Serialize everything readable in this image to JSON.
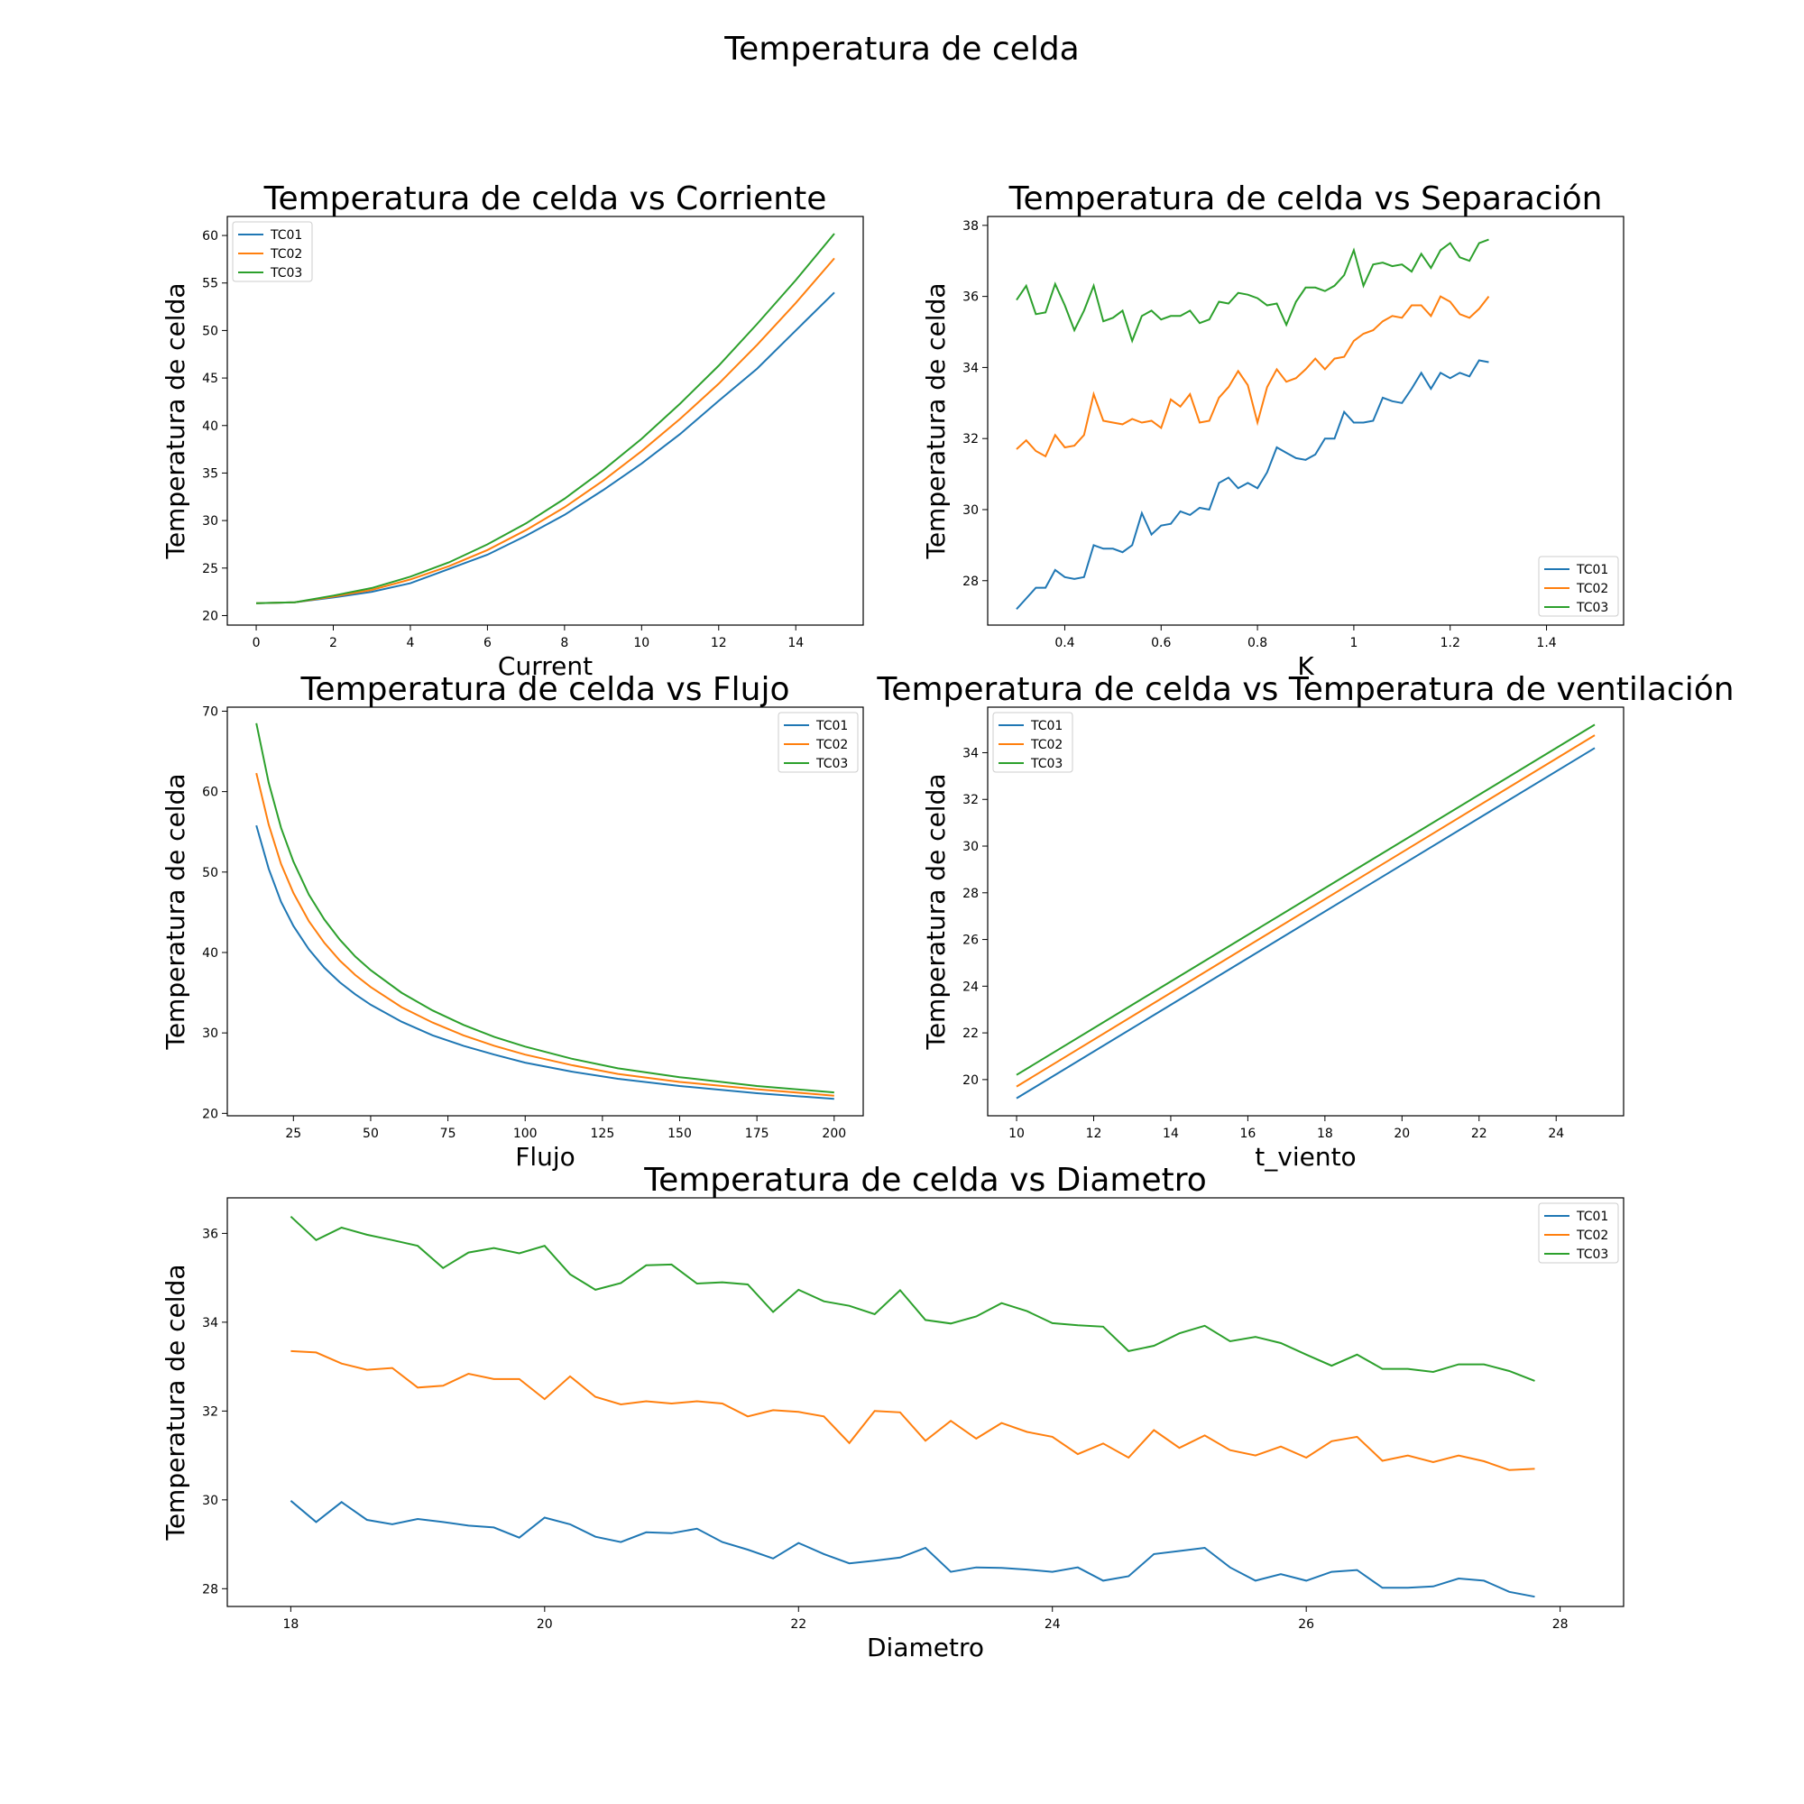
{
  "figure": {
    "suptitle": "Temperatura de celda"
  },
  "colors": {
    "TC01": "#1f77b4",
    "TC02": "#ff7f0e",
    "TC03": "#2ca02c"
  },
  "chart_data": [
    {
      "type": "line",
      "title": "Temperatura de celda vs Corriente",
      "xlabel": "Current",
      "ylabel": "Temperatura de celda",
      "xlim": [
        -0.75,
        15.75
      ],
      "ylim": [
        19.0,
        62.0
      ],
      "xticks": [
        0,
        2,
        4,
        6,
        8,
        10,
        12,
        14
      ],
      "yticks": [
        20,
        25,
        30,
        35,
        40,
        45,
        50,
        55,
        60
      ],
      "legend": "upper-left",
      "x": [
        0,
        1,
        2,
        3,
        4,
        5,
        6,
        7,
        8,
        9,
        10,
        11,
        12,
        13,
        14,
        15
      ],
      "series": [
        {
          "name": "TC01",
          "values": [
            21.3,
            21.4,
            21.9,
            22.5,
            23.4,
            24.9,
            26.4,
            28.4,
            30.6,
            33.2,
            36.0,
            39.1,
            42.6,
            46.0,
            50.0,
            54.0
          ]
        },
        {
          "name": "TC02",
          "values": [
            21.3,
            21.4,
            22.0,
            22.7,
            23.8,
            25.2,
            26.9,
            29.0,
            31.4,
            34.2,
            37.3,
            40.7,
            44.4,
            48.5,
            52.9,
            57.6
          ]
        },
        {
          "name": "TC03",
          "values": [
            21.3,
            21.4,
            22.1,
            22.9,
            24.1,
            25.6,
            27.5,
            29.7,
            32.3,
            35.3,
            38.6,
            42.3,
            46.3,
            50.7,
            55.3,
            60.2
          ]
        }
      ]
    },
    {
      "type": "line",
      "title": "Temperatura de celda vs Separación",
      "xlabel": "K",
      "ylabel": "Temperatura de celda",
      "xlim": [
        0.24,
        1.56
      ],
      "ylim": [
        26.75,
        38.25
      ],
      "xticks": [
        0.4,
        0.6,
        0.8,
        1.0,
        1.2,
        1.4
      ],
      "yticks": [
        28,
        30,
        32,
        34,
        36,
        38
      ],
      "legend": "lower-right",
      "x_start": 0.3,
      "x_step": 0.02,
      "series": [
        {
          "name": "TC01",
          "values": [
            27.2,
            27.5,
            27.8,
            27.8,
            28.3,
            28.1,
            28.05,
            28.1,
            29.0,
            28.9,
            28.9,
            28.8,
            29.0,
            29.9,
            29.3,
            29.55,
            29.6,
            29.95,
            29.85,
            30.05,
            30.0,
            30.75,
            30.9,
            30.6,
            30.75,
            30.6,
            31.05,
            31.75,
            31.6,
            31.45,
            31.4,
            31.55,
            32.0,
            32.0,
            32.75,
            32.45,
            32.45,
            32.5,
            33.15,
            33.05,
            33.0,
            33.4,
            33.85,
            33.4,
            33.85,
            33.7,
            33.85,
            33.75,
            34.2,
            34.15
          ]
        },
        {
          "name": "TC02",
          "values": [
            31.7,
            31.95,
            31.65,
            31.5,
            32.1,
            31.75,
            31.8,
            32.1,
            33.25,
            32.5,
            32.45,
            32.4,
            32.55,
            32.45,
            32.5,
            32.3,
            33.1,
            32.9,
            33.25,
            32.45,
            32.5,
            33.15,
            33.45,
            33.9,
            33.5,
            32.45,
            33.45,
            33.95,
            33.6,
            33.7,
            33.95,
            34.25,
            33.95,
            34.25,
            34.3,
            34.75,
            34.95,
            35.05,
            35.3,
            35.45,
            35.4,
            35.75,
            35.75,
            35.45,
            36.0,
            35.85,
            35.5,
            35.4,
            35.65,
            36.0
          ]
        },
        {
          "name": "TC03",
          "values": [
            35.9,
            36.3,
            35.5,
            35.55,
            36.35,
            35.75,
            35.05,
            35.6,
            36.3,
            35.3,
            35.4,
            35.6,
            34.75,
            35.45,
            35.6,
            35.35,
            35.45,
            35.45,
            35.6,
            35.25,
            35.35,
            35.85,
            35.8,
            36.1,
            36.05,
            35.95,
            35.75,
            35.8,
            35.2,
            35.85,
            36.25,
            36.25,
            36.15,
            36.3,
            36.6,
            37.3,
            36.3,
            36.9,
            36.95,
            36.85,
            36.9,
            36.7,
            37.2,
            36.8,
            37.3,
            37.5,
            37.1,
            37.0,
            37.5,
            37.6
          ]
        }
      ]
    },
    {
      "type": "line",
      "title": "Temperatura de celda vs Flujo",
      "xlabel": "Flujo",
      "ylabel": "Temperatura de celda",
      "xlim": [
        3.6,
        209.4
      ],
      "ylim": [
        19.7,
        70.5
      ],
      "xticks": [
        25,
        50,
        75,
        100,
        125,
        150,
        175,
        200
      ],
      "yticks": [
        20,
        30,
        40,
        50,
        60,
        70
      ],
      "legend": "upper-right",
      "x": [
        13,
        17,
        21,
        25,
        30,
        35,
        40,
        45,
        50,
        60,
        70,
        80,
        90,
        100,
        115,
        130,
        150,
        175,
        200
      ],
      "series": [
        {
          "name": "TC01",
          "values": [
            55.8,
            50.4,
            46.3,
            43.3,
            40.4,
            38.1,
            36.3,
            34.8,
            33.5,
            31.4,
            29.7,
            28.4,
            27.3,
            26.3,
            25.2,
            24.3,
            23.4,
            22.5,
            21.8
          ]
        },
        {
          "name": "TC02",
          "values": [
            62.3,
            55.9,
            51.0,
            47.4,
            43.9,
            41.2,
            39.0,
            37.2,
            35.7,
            33.2,
            31.3,
            29.7,
            28.4,
            27.3,
            26.0,
            24.9,
            23.9,
            23.0,
            22.2
          ]
        },
        {
          "name": "TC03",
          "values": [
            68.5,
            61.1,
            55.5,
            51.3,
            47.2,
            44.1,
            41.6,
            39.5,
            37.8,
            35.0,
            32.8,
            31.0,
            29.5,
            28.3,
            26.8,
            25.6,
            24.5,
            23.4,
            22.6
          ]
        }
      ]
    },
    {
      "type": "line",
      "title": "Temperatura de celda vs Temperatura de ventilación",
      "xlabel": "t_viento",
      "ylabel": "Temperatura de celda",
      "xlim": [
        9.25,
        25.75
      ],
      "ylim": [
        18.45,
        35.95
      ],
      "xticks": [
        10,
        12,
        14,
        16,
        18,
        20,
        22,
        24
      ],
      "yticks": [
        20,
        22,
        24,
        26,
        28,
        30,
        32,
        34
      ],
      "legend": "upper-left",
      "x": [
        10,
        25
      ],
      "series": [
        {
          "name": "TC01",
          "values": [
            19.2,
            34.2
          ]
        },
        {
          "name": "TC02",
          "values": [
            19.7,
            34.75
          ]
        },
        {
          "name": "TC03",
          "values": [
            20.2,
            35.2
          ]
        }
      ]
    },
    {
      "type": "line",
      "title": "Temperatura de celda vs Diametro",
      "xlabel": "Diametro",
      "ylabel": "Temperatura de celda",
      "xlim": [
        17.5,
        28.5
      ],
      "ylim": [
        27.6,
        36.8
      ],
      "xticks": [
        18,
        20,
        22,
        24,
        26,
        28
      ],
      "yticks": [
        28,
        30,
        32,
        34,
        36
      ],
      "legend": "upper-right",
      "x_start": 18,
      "x_step": 0.2,
      "series": [
        {
          "name": "TC01",
          "values": [
            29.98,
            29.5,
            29.95,
            29.55,
            29.45,
            29.57,
            29.5,
            29.42,
            29.38,
            29.15,
            29.6,
            29.45,
            29.17,
            29.05,
            29.27,
            29.25,
            29.35,
            29.05,
            28.88,
            28.68,
            29.03,
            28.78,
            28.57,
            28.63,
            28.7,
            28.92,
            28.38,
            28.48,
            28.47,
            28.43,
            28.38,
            28.48,
            28.18,
            28.28,
            28.78,
            28.85,
            28.92,
            28.48,
            28.18,
            28.33,
            28.18,
            28.38,
            28.42,
            28.02,
            28.02,
            28.05,
            28.23,
            28.18,
            27.93,
            27.82
          ]
        },
        {
          "name": "TC02",
          "values": [
            33.35,
            33.32,
            33.07,
            32.93,
            32.97,
            32.53,
            32.57,
            32.84,
            32.72,
            32.72,
            32.27,
            32.78,
            32.32,
            32.15,
            32.22,
            32.17,
            32.22,
            32.17,
            31.88,
            32.02,
            31.98,
            31.88,
            31.28,
            32.0,
            31.97,
            31.33,
            31.78,
            31.38,
            31.73,
            31.53,
            31.42,
            31.03,
            31.27,
            30.95,
            31.57,
            31.17,
            31.45,
            31.12,
            31.0,
            31.2,
            30.95,
            31.32,
            31.42,
            30.88,
            31.0,
            30.85,
            31.0,
            30.87,
            30.67,
            30.7
          ]
        },
        {
          "name": "TC03",
          "values": [
            36.38,
            35.85,
            36.13,
            35.97,
            35.85,
            35.72,
            35.22,
            35.57,
            35.67,
            35.55,
            35.72,
            35.08,
            34.73,
            34.88,
            35.28,
            35.3,
            34.87,
            34.9,
            34.85,
            34.23,
            34.73,
            34.47,
            34.37,
            34.18,
            34.72,
            34.05,
            33.97,
            34.13,
            34.43,
            34.25,
            33.98,
            33.93,
            33.9,
            33.35,
            33.47,
            33.75,
            33.92,
            33.57,
            33.67,
            33.53,
            33.27,
            33.02,
            33.27,
            32.95,
            32.95,
            32.88,
            33.05,
            33.05,
            32.9,
            32.68
          ]
        }
      ]
    }
  ]
}
